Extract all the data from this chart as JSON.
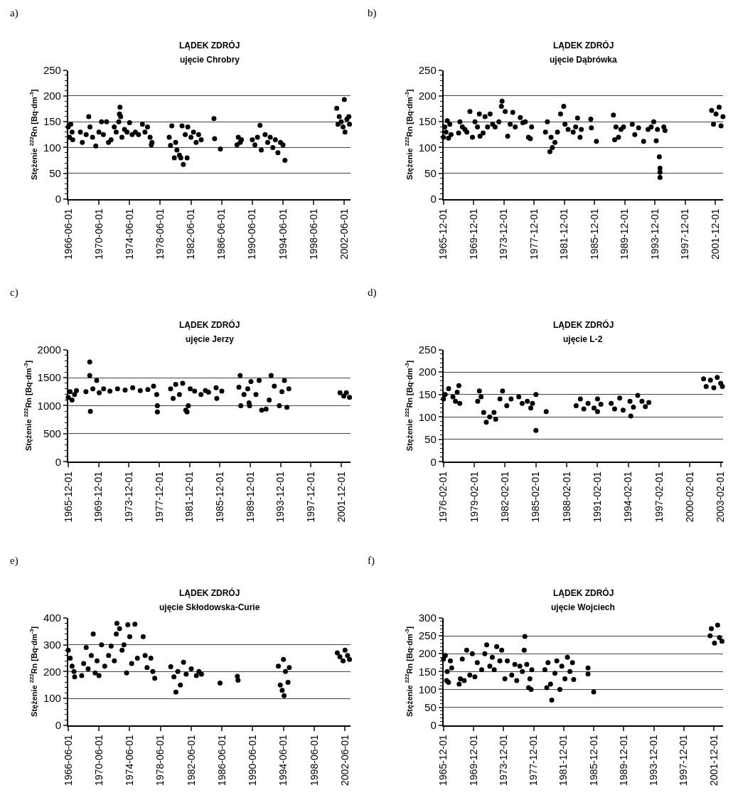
{
  "chart_data": [
    {
      "type": "scatter",
      "title": "LĄDEK ZDRÓJ",
      "subtitle": "ujęcie Chrobry",
      "ylabel": "Stężenie $^{222}$Rn [Bq·dm$^{-3}$]",
      "annotations": [
        "a)"
      ],
      "marker": "circle",
      "grid": "y",
      "ylim": [
        0,
        250
      ],
      "yticks": [
        0,
        50,
        100,
        150,
        200,
        250
      ],
      "xlim": [
        "1966-06-01",
        "2003-04-01"
      ],
      "xticks": [
        "1966-06-01",
        "1970-06-01",
        "1974-06-01",
        "1978-06-01",
        "1982-06-01",
        "1986-06-01",
        "1990-06-01",
        "1994-06-01",
        "1998-06-01",
        "2002-06-01"
      ],
      "series": [
        {
          "color": "#000000",
          "x": [
            "1966-06",
            "1966-08",
            "1966-10",
            "1966-12",
            "1967-01",
            "1968-01",
            "1968-04",
            "1968-10",
            "1969-02",
            "1969-04",
            "1969-08",
            "1970-01",
            "1970-06",
            "1970-10",
            "1971-01",
            "1971-06",
            "1971-09",
            "1972-01",
            "1972-06",
            "1972-09",
            "1973-01",
            "1973-02",
            "1973-03",
            "1973-04",
            "1973-06",
            "1973-10",
            "1974-02",
            "1974-06",
            "1974-10",
            "1975-03",
            "1975-08",
            "1976-02",
            "1976-06",
            "1976-10",
            "1977-02",
            "1977-04",
            "1977-05",
            "1979-08",
            "1979-10",
            "1979-12",
            "1980-04",
            "1980-06",
            "1980-08",
            "1980-12",
            "1981-02",
            "1981-04",
            "1981-06",
            "1981-09",
            "1981-12",
            "1982-01",
            "1982-06",
            "1982-10",
            "1983-02",
            "1983-06",
            "1983-10",
            "1985-06",
            "1985-07",
            "1986-04",
            "1988-06",
            "1988-08",
            "1988-11",
            "1989-01",
            "1990-06",
            "1990-10",
            "1991-02",
            "1991-06",
            "1991-08",
            "1992-02",
            "1992-06",
            "1992-10",
            "1993-02",
            "1993-06",
            "1993-10",
            "1994-02",
            "1994-06",
            "1994-09",
            "2001-06",
            "2001-08",
            "2001-10",
            "2002-01",
            "2002-04",
            "2002-06",
            "2002-07",
            "2002-10",
            "2003-01",
            "2003-02"
          ],
          "values": [
            140,
            120,
            145,
            130,
            115,
            130,
            110,
            125,
            160,
            140,
            120,
            103,
            130,
            150,
            125,
            150,
            110,
            115,
            140,
            130,
            150,
            165,
            178,
            160,
            120,
            135,
            130,
            148,
            125,
            130,
            125,
            145,
            130,
            140,
            120,
            105,
            110,
            120,
            104,
            142,
            80,
            110,
            95,
            85,
            80,
            142,
            67,
            125,
            80,
            140,
            120,
            130,
            110,
            125,
            115,
            156,
            117,
            97,
            105,
            120,
            110,
            115,
            115,
            105,
            120,
            143,
            95,
            125,
            110,
            120,
            100,
            115,
            90,
            110,
            105,
            75,
            176,
            145,
            160,
            150,
            140,
            193,
            130,
            155,
            160,
            145
          ]
        }
      ]
    },
    {
      "type": "scatter",
      "title": "LĄDEK ZDRÓJ",
      "subtitle": "ujęcie Dąbrówka",
      "ylabel": "Stężenie $^{222}$Rn [Bq·dm$^{-3}$]",
      "annotations": [
        "b)"
      ],
      "marker": "circle",
      "grid": "y",
      "ylim": [
        0,
        250
      ],
      "yticks": [
        0,
        50,
        100,
        150,
        200,
        250
      ],
      "xlim": [
        "1965-12-01",
        "2002-12-15"
      ],
      "xticks": [
        "1965-12-01",
        "1969-12-01",
        "1973-12-01",
        "1977-12-01",
        "1981-12-01",
        "1985-12-01",
        "1989-12-01",
        "1993-12-01",
        "1997-12-01",
        "2001-12-01"
      ],
      "series": [
        {
          "color": "#000000",
          "x": [
            "1965-12",
            "1966-02",
            "1966-04",
            "1966-06",
            "1966-08",
            "1966-10",
            "1966-12",
            "1967-12",
            "1968-02",
            "1968-06",
            "1968-10",
            "1969-01",
            "1969-06",
            "1969-10",
            "1970-02",
            "1970-06",
            "1970-09",
            "1970-10",
            "1971-03",
            "1971-06",
            "1971-10",
            "1972-02",
            "1972-06",
            "1972-10",
            "1973-04",
            "1973-08",
            "1973-09",
            "1974-02",
            "1974-06",
            "1974-10",
            "1975-02",
            "1975-06",
            "1976-02",
            "1976-06",
            "1976-10",
            "1977-03",
            "1977-06",
            "1977-08",
            "1979-06",
            "1979-09",
            "1980-01",
            "1980-03",
            "1980-05",
            "1980-09",
            "1981-01",
            "1981-06",
            "1981-11",
            "1982-01",
            "1982-06",
            "1983-02",
            "1983-06",
            "1983-09",
            "1984-01",
            "1984-03",
            "1985-06",
            "1985-07",
            "1986-03",
            "1988-06",
            "1988-08",
            "1988-10",
            "1989-02",
            "1989-06",
            "1989-10",
            "1990-12",
            "1991-04",
            "1991-10",
            "1992-06",
            "1993-01",
            "1993-06",
            "1993-10",
            "1994-02",
            "1994-04",
            "1994-07",
            "1994-08",
            "1994-08",
            "1994-08",
            "1995-02",
            "1995-04",
            "2001-06",
            "2001-09",
            "2002-01",
            "2002-06",
            "2002-09",
            "2002-12"
          ],
          "values": [
            120,
            140,
            130,
            152,
            118,
            145,
            125,
            128,
            150,
            140,
            135,
            130,
            170,
            120,
            150,
            140,
            165,
            122,
            128,
            160,
            140,
            165,
            145,
            140,
            150,
            180,
            190,
            170,
            122,
            145,
            168,
            140,
            158,
            148,
            150,
            120,
            117,
            140,
            130,
            150,
            92,
            120,
            100,
            110,
            130,
            165,
            180,
            145,
            135,
            130,
            140,
            157,
            120,
            135,
            155,
            138,
            112,
            163,
            115,
            140,
            120,
            135,
            140,
            145,
            125,
            138,
            112,
            135,
            140,
            150,
            113,
            135,
            82,
            60,
            52,
            42,
            140,
            133,
            172,
            145,
            165,
            178,
            142,
            160
          ]
        }
      ]
    },
    {
      "type": "scatter",
      "title": "LĄDEK ZDRÓJ",
      "subtitle": "ujęcie Jerzy",
      "ylabel": "Stężenie $^{222}$Rn [Bq·dm$^{-3}$]",
      "annotations": [
        "c)"
      ],
      "marker": "circle",
      "grid": "y",
      "ylim": [
        0,
        2000
      ],
      "yticks": [
        0,
        500,
        1000,
        1500,
        2000
      ],
      "xlim": [
        "1965-12-01",
        "2003-03-01"
      ],
      "xticks": [
        "1965-12-01",
        "1969-12-01",
        "1973-12-01",
        "1977-12-01",
        "1981-12-01",
        "1985-12-01",
        "1989-12-01",
        "1993-12-01",
        "1997-12-01",
        "2001-12-01"
      ],
      "series": [
        {
          "color": "#000000",
          "x": [
            "1965-12",
            "1966-03",
            "1966-06",
            "1966-10",
            "1967-01",
            "1968-04",
            "1968-10",
            "1968-10",
            "1968-11",
            "1969-03",
            "1969-09",
            "1970-01",
            "1970-08",
            "1971-06",
            "1972-06",
            "1973-06",
            "1974-06",
            "1975-06",
            "1976-06",
            "1977-03",
            "1977-08",
            "1977-09",
            "1977-09",
            "1979-06",
            "1979-10",
            "1980-02",
            "1980-08",
            "1981-01",
            "1981-06",
            "1981-08",
            "1981-10",
            "1982-01",
            "1982-08",
            "1983-06",
            "1984-01",
            "1984-06",
            "1985-06",
            "1985-07",
            "1986-03",
            "1988-06",
            "1988-08",
            "1988-09",
            "1989-02",
            "1989-08",
            "1989-10",
            "1989-11",
            "1990-01",
            "1990-09",
            "1991-02",
            "1991-06",
            "1992-01",
            "1992-06",
            "1992-09",
            "1993-02",
            "1993-10",
            "1994-02",
            "1994-06",
            "1994-10",
            "1995-01",
            "2001-10",
            "2002-04",
            "2002-08",
            "2003-01"
          ],
          "values": [
            1150,
            1250,
            1100,
            1200,
            1270,
            1250,
            1780,
            1540,
            900,
            1300,
            1450,
            1230,
            1300,
            1260,
            1300,
            1280,
            1320,
            1270,
            1290,
            1350,
            1200,
            1000,
            890,
            1300,
            1130,
            1380,
            1200,
            1400,
            920,
            890,
            1000,
            1300,
            1260,
            1200,
            1270,
            1240,
            1320,
            1130,
            1260,
            1330,
            1540,
            1000,
            1200,
            1300,
            1050,
            1000,
            1430,
            1200,
            1450,
            920,
            940,
            1100,
            1540,
            1350,
            1000,
            1250,
            1450,
            970,
            1300,
            1230,
            1170,
            1230,
            1150
          ]
        }
      ]
    },
    {
      "type": "scatter",
      "title": "LĄDEK ZDRÓJ",
      "subtitle": "ujęcie L-2",
      "ylabel": "Stężenie $^{222}$Rn [Bq·dm$^{-3}$]",
      "annotations": [
        "d)"
      ],
      "marker": "circle",
      "grid": "y",
      "ylim": [
        0,
        250
      ],
      "yticks": [
        0,
        50,
        100,
        150,
        200,
        250
      ],
      "xlim": [
        "1976-02-01",
        "2003-05-01"
      ],
      "xticks": [
        "1976-02-01",
        "1979-02-01",
        "1982-02-01",
        "1985-02-01",
        "1988-02-01",
        "1991-02-01",
        "1994-02-01",
        "1997-02-01",
        "2000-02-01",
        "2003-02-01"
      ],
      "series": [
        {
          "color": "#000000",
          "x": [
            "1976-02",
            "1976-04",
            "1976-08",
            "1977-01",
            "1977-04",
            "1977-06",
            "1977-08",
            "1977-09",
            "1979-06",
            "1979-08",
            "1979-10",
            "1980-01",
            "1980-04",
            "1980-08",
            "1981-01",
            "1981-03",
            "1981-08",
            "1981-11",
            "1982-04",
            "1982-09",
            "1983-06",
            "1983-10",
            "1984-04",
            "1984-08",
            "1984-10",
            "1985-02",
            "1985-02",
            "1986-02",
            "1989-01",
            "1989-06",
            "1989-10",
            "1990-03",
            "1990-10",
            "1991-02",
            "1991-02",
            "1991-06",
            "1992-06",
            "1992-10",
            "1993-04",
            "1993-08",
            "1994-04",
            "1994-05",
            "1994-08",
            "1995-01",
            "1995-06",
            "1995-10",
            "1996-02",
            "2001-06",
            "2001-09",
            "2002-02",
            "2002-06",
            "2002-10",
            "2003-02",
            "2003-04"
          ],
          "values": [
            140,
            150,
            163,
            145,
            135,
            155,
            170,
            130,
            135,
            158,
            145,
            110,
            88,
            100,
            110,
            95,
            140,
            158,
            125,
            140,
            145,
            130,
            135,
            120,
            130,
            150,
            70,
            112,
            125,
            140,
            118,
            130,
            120,
            140,
            112,
            128,
            130,
            118,
            142,
            115,
            135,
            102,
            122,
            148,
            135,
            123,
            132,
            185,
            168,
            182,
            165,
            188,
            175,
            168
          ]
        }
      ]
    },
    {
      "type": "scatter",
      "title": "LĄDEK ZDRÓJ",
      "subtitle": "ujęcie Skłodowska-Curie",
      "ylabel": "Stężenie $^{222}$Rn [Bq·dm$^{-3}$]",
      "annotations": [
        "e)"
      ],
      "marker": "circle",
      "grid": "y",
      "ylim": [
        0,
        400
      ],
      "yticks": [
        0,
        100,
        200,
        300,
        400
      ],
      "xlim": [
        "1966-06-01",
        "2003-03-01"
      ],
      "xticks": [
        "1966-06-01",
        "1970-06-01",
        "1974-06-01",
        "1978-06-01",
        "1982-06-01",
        "1986-06-01",
        "1990-06-01",
        "1994-06-01",
        "1998-06-01",
        "2002-06-01"
      ],
      "series": [
        {
          "color": "#000000",
          "x": [
            "1966-06",
            "1966-09",
            "1966-12",
            "1967-03",
            "1967-04",
            "1968-03",
            "1968-06",
            "1968-10",
            "1969-01",
            "1969-06",
            "1969-09",
            "1969-12",
            "1970-03",
            "1970-06",
            "1970-10",
            "1971-03",
            "1971-09",
            "1972-01",
            "1972-06",
            "1972-09",
            "1972-10",
            "1973-02",
            "1973-06",
            "1973-09",
            "1974-01",
            "1974-03",
            "1974-06",
            "1974-09",
            "1975-02",
            "1975-06",
            "1976-03",
            "1976-06",
            "1976-09",
            "1977-03",
            "1977-06",
            "1977-09",
            "1979-10",
            "1980-03",
            "1980-06",
            "1980-09",
            "1981-01",
            "1981-06",
            "1981-10",
            "1982-06",
            "1983-02",
            "1983-06",
            "1983-10",
            "1986-03",
            "1988-06",
            "1988-07",
            "1993-10",
            "1994-01",
            "1994-04",
            "1994-06",
            "1994-07",
            "1994-09",
            "1995-01",
            "1995-03",
            "2001-06",
            "2001-10",
            "2002-03",
            "2002-06",
            "2002-10",
            "2003-01"
          ],
          "values": [
            280,
            250,
            220,
            200,
            180,
            185,
            230,
            290,
            210,
            260,
            340,
            195,
            240,
            185,
            300,
            220,
            260,
            295,
            240,
            340,
            380,
            360,
            280,
            300,
            195,
            375,
            330,
            230,
            377,
            250,
            330,
            260,
            215,
            250,
            200,
            175,
            218,
            180,
            123,
            200,
            150,
            235,
            190,
            210,
            185,
            200,
            190,
            157,
            182,
            168,
            220,
            150,
            130,
            245,
            110,
            200,
            160,
            215,
            270,
            255,
            240,
            280,
            260,
            245
          ]
        }
      ]
    },
    {
      "type": "scatter",
      "title": "LĄDEK ZDRÓJ",
      "subtitle": "ujęcie Wojciech",
      "ylabel": "Stężenie $^{222}$Rn [Bq·dm$^{-3}$]",
      "annotations": [
        "f)"
      ],
      "marker": "circle",
      "grid": "y",
      "ylim": [
        0,
        300
      ],
      "yticks": [
        0,
        50,
        100,
        150,
        200,
        250,
        300
      ],
      "xlim": [
        "1965-12-01",
        "2003-03-01"
      ],
      "xticks": [
        "1965-12-01",
        "1969-12-01",
        "1973-12-01",
        "1977-12-01",
        "1981-12-01",
        "1985-12-01",
        "1989-12-01",
        "1993-12-01",
        "1997-12-01",
        "2001-12-01"
      ],
      "series": [
        {
          "color": "#000000",
          "x": [
            "1965-12",
            "1966-03",
            "1966-05",
            "1966-06",
            "1966-08",
            "1966-11",
            "1967-01",
            "1968-01",
            "1968-03",
            "1968-06",
            "1968-09",
            "1969-01",
            "1969-06",
            "1969-10",
            "1970-02",
            "1970-06",
            "1971-01",
            "1971-06",
            "1971-09",
            "1972-02",
            "1972-06",
            "1972-09",
            "1973-01",
            "1973-06",
            "1973-09",
            "1974-02",
            "1974-06",
            "1975-01",
            "1975-06",
            "1975-09",
            "1976-02",
            "1976-06",
            "1976-09",
            "1976-10",
            "1977-01",
            "1977-04",
            "1977-06",
            "1977-08",
            "1977-09",
            "1979-06",
            "1979-09",
            "1979-11",
            "1980-03",
            "1980-05",
            "1980-10",
            "1981-01",
            "1981-06",
            "1981-09",
            "1982-02",
            "1982-06",
            "1982-10",
            "1983-02",
            "1983-04",
            "1985-03",
            "1985-03",
            "1985-12",
            "2001-06",
            "2001-08",
            "2002-01",
            "2002-06",
            "2002-09",
            "2003-01"
          ],
          "values": [
            185,
            195,
            125,
            150,
            120,
            180,
            160,
            115,
            130,
            185,
            125,
            210,
            140,
            200,
            135,
            175,
            155,
            200,
            225,
            165,
            190,
            155,
            220,
            180,
            210,
            130,
            180,
            140,
            170,
            125,
            165,
            150,
            210,
            248,
            170,
            105,
            130,
            100,
            155,
            155,
            105,
            175,
            115,
            70,
            145,
            180,
            100,
            165,
            130,
            190,
            150,
            175,
            128,
            160,
            143,
            93,
            250,
            270,
            230,
            280,
            245,
            235
          ]
        }
      ]
    }
  ]
}
